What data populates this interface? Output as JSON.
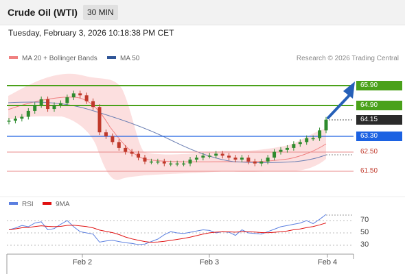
{
  "header": {
    "title": "Crude Oil (WTI)",
    "timeframe": "30 MIN"
  },
  "datetime": "Tuesday, February 3, 2026 10:18:38 PM CET",
  "legend": {
    "ma20_label": "MA 20 + Bollinger Bands",
    "ma50_label": "MA 50",
    "ma20_color": "#f08080",
    "ma50_color": "#2f5597",
    "credit": "Research © 2026 Trading Central"
  },
  "levels": {
    "r2": "65.90",
    "r1": "64.90",
    "last": "64.15",
    "pivot": "63.30",
    "s1": "62.50",
    "s2": "61.50"
  },
  "rsi": {
    "rsi_label": "RSI",
    "ma_label": "9MA",
    "rsi_color": "#5b7fe0",
    "ma_color": "#e01010",
    "levels": [
      "70",
      "50",
      "30"
    ]
  },
  "x_axis": [
    "Feb 2",
    "Feb 3",
    "Feb 4"
  ],
  "colors": {
    "resistance": "#4aa11a",
    "pivot": "#1c62e2",
    "support": "#e05050",
    "candle_up": "#2e8b2e",
    "candle_down": "#c0392b",
    "band_fill": "#fbd9d9",
    "arrow": "#2660b8"
  },
  "chart_data": {
    "type": "candlestick",
    "series_price": [
      64.1,
      64.2,
      64.3,
      64.6,
      64.9,
      65.2,
      64.7,
      64.9,
      65.0,
      65.3,
      65.5,
      65.4,
      65.1,
      64.8,
      63.5,
      63.3,
      63.0,
      62.7,
      62.5,
      62.4,
      62.2,
      62.0,
      62.0,
      62.0,
      61.9,
      61.9,
      61.9,
      61.9,
      62.1,
      62.2,
      62.3,
      62.3,
      62.4,
      62.3,
      62.2,
      62.1,
      62.2,
      62.0,
      61.9,
      62.0,
      62.2,
      62.5,
      62.6,
      62.7,
      62.9,
      63.0,
      63.2,
      63.2,
      63.6,
      64.15
    ],
    "rsi_values": [
      55,
      58,
      62,
      60,
      66,
      68,
      55,
      57,
      64,
      70,
      60,
      52,
      50,
      48,
      35,
      37,
      38,
      36,
      34,
      33,
      31,
      32,
      36,
      40,
      47,
      52,
      50,
      49,
      51,
      53,
      55,
      54,
      50,
      52,
      51,
      46,
      55,
      50,
      49,
      48,
      52,
      56,
      60,
      62,
      64,
      66,
      70,
      65,
      72,
      80
    ]
  }
}
